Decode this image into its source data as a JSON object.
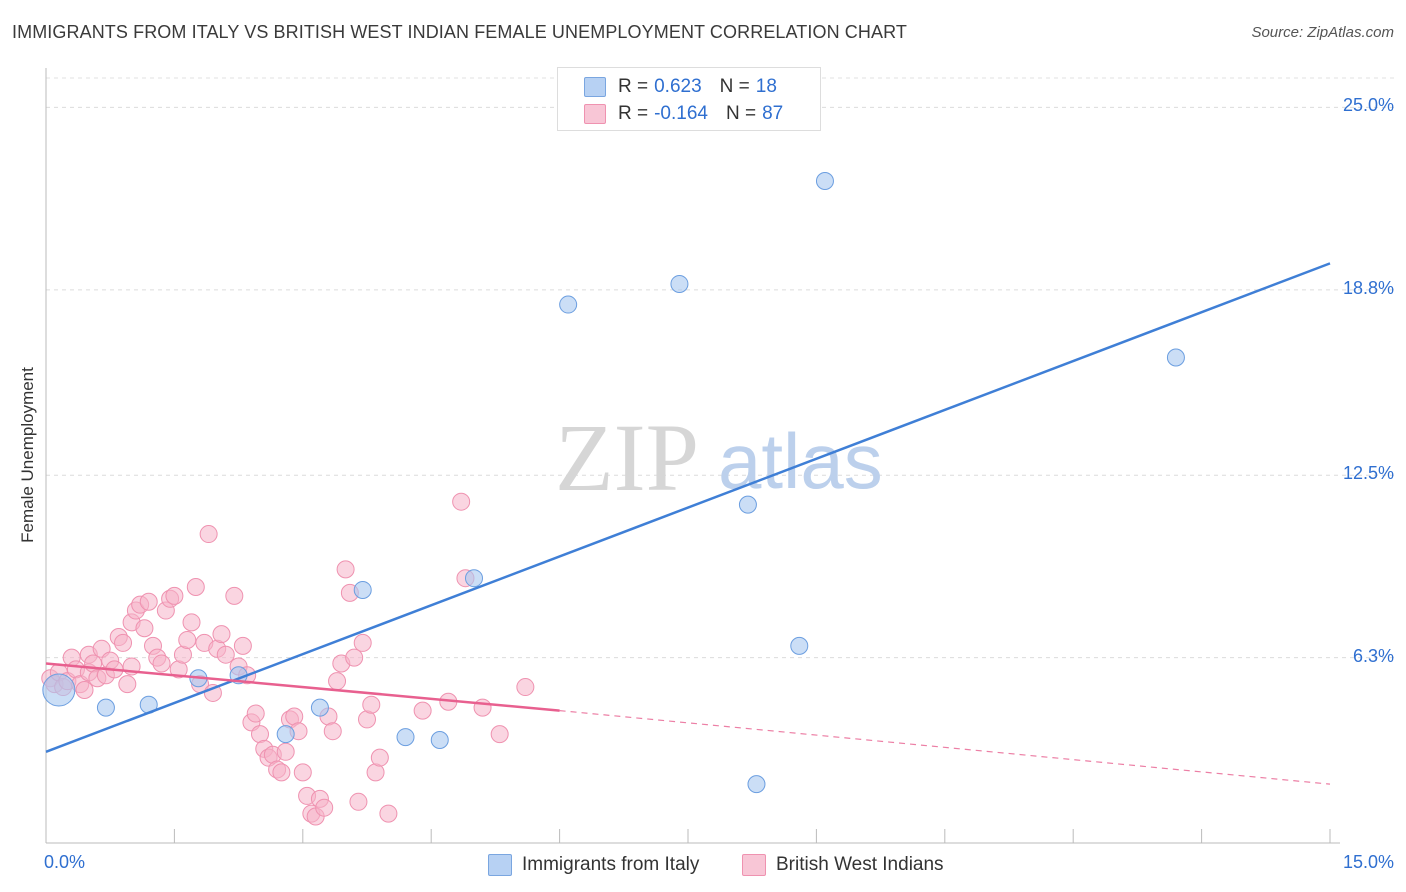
{
  "title": "IMMIGRANTS FROM ITALY VS BRITISH WEST INDIAN FEMALE UNEMPLOYMENT CORRELATION CHART",
  "source": "Source: ZipAtlas.com",
  "watermark": {
    "zip": "ZIP",
    "atlas": "atlas"
  },
  "legend": {
    "rows": [
      {
        "r_label": "R =",
        "r_value": "0.623",
        "n_label": "N =",
        "n_value": "18",
        "color": "#a9c8f0"
      },
      {
        "r_label": "R =",
        "r_value": "-0.164",
        "n_label": "N =",
        "n_value": "87",
        "color": "#f5b3c8"
      }
    ]
  },
  "bottom_legend": {
    "italy": "Immigrants from Italy",
    "bwi": "British West Indians"
  },
  "chart_data": {
    "type": "scatter",
    "title": "IMMIGRANTS FROM ITALY VS BRITISH WEST INDIAN FEMALE UNEMPLOYMENT CORRELATION CHART",
    "xlabel": "",
    "ylabel": "Female Unemployment",
    "xlim": [
      0,
      15
    ],
    "ylim": [
      0,
      26
    ],
    "x_ticks": [
      "0.0%",
      "15.0%"
    ],
    "y_ticks": [
      {
        "value": 6.3,
        "label": "6.3%"
      },
      {
        "value": 12.5,
        "label": "12.5%"
      },
      {
        "value": 18.8,
        "label": "18.8%"
      },
      {
        "value": 25.0,
        "label": "25.0%"
      }
    ],
    "grid": true,
    "series": [
      {
        "name": "Immigrants from Italy",
        "color": "#3f7fd6",
        "fill": "#a9c8f0",
        "points": [
          [
            0.15,
            5.2
          ],
          [
            0.7,
            4.6
          ],
          [
            1.2,
            4.7
          ],
          [
            1.78,
            5.6
          ],
          [
            2.25,
            5.7
          ],
          [
            2.8,
            3.7
          ],
          [
            3.2,
            4.6
          ],
          [
            3.7,
            8.6
          ],
          [
            4.2,
            3.6
          ],
          [
            4.6,
            3.5
          ],
          [
            5.0,
            9.0
          ],
          [
            6.1,
            18.3
          ],
          [
            7.4,
            19.0
          ],
          [
            8.2,
            11.5
          ],
          [
            8.8,
            6.7
          ],
          [
            8.3,
            2.0
          ],
          [
            9.1,
            22.5
          ],
          [
            13.2,
            16.5
          ]
        ],
        "trend": {
          "x0": 0.0,
          "y0": 3.1,
          "x1": 15.0,
          "y1": 19.7
        }
      },
      {
        "name": "British West Indians",
        "color": "#e8608f",
        "fill": "#f5b3c8",
        "points": [
          [
            0.05,
            5.6
          ],
          [
            0.1,
            5.4
          ],
          [
            0.15,
            5.8
          ],
          [
            0.2,
            5.3
          ],
          [
            0.25,
            5.5
          ],
          [
            0.3,
            6.3
          ],
          [
            0.35,
            5.9
          ],
          [
            0.4,
            5.4
          ],
          [
            0.45,
            5.2
          ],
          [
            0.5,
            5.8
          ],
          [
            0.5,
            6.4
          ],
          [
            0.55,
            6.1
          ],
          [
            0.6,
            5.6
          ],
          [
            0.65,
            6.6
          ],
          [
            0.7,
            5.7
          ],
          [
            0.75,
            6.2
          ],
          [
            0.8,
            5.9
          ],
          [
            0.85,
            7.0
          ],
          [
            0.9,
            6.8
          ],
          [
            0.95,
            5.4
          ],
          [
            1.0,
            6.0
          ],
          [
            1.0,
            7.5
          ],
          [
            1.05,
            7.9
          ],
          [
            1.1,
            8.1
          ],
          [
            1.15,
            7.3
          ],
          [
            1.2,
            8.2
          ],
          [
            1.25,
            6.7
          ],
          [
            1.3,
            6.3
          ],
          [
            1.35,
            6.1
          ],
          [
            1.4,
            7.9
          ],
          [
            1.45,
            8.3
          ],
          [
            1.5,
            8.4
          ],
          [
            1.55,
            5.9
          ],
          [
            1.6,
            6.4
          ],
          [
            1.65,
            6.9
          ],
          [
            1.7,
            7.5
          ],
          [
            1.75,
            8.7
          ],
          [
            1.8,
            5.4
          ],
          [
            1.85,
            6.8
          ],
          [
            1.9,
            10.5
          ],
          [
            1.95,
            5.1
          ],
          [
            2.0,
            6.6
          ],
          [
            2.05,
            7.1
          ],
          [
            2.1,
            6.4
          ],
          [
            2.2,
            8.4
          ],
          [
            2.25,
            6.0
          ],
          [
            2.3,
            6.7
          ],
          [
            2.35,
            5.7
          ],
          [
            2.4,
            4.1
          ],
          [
            2.45,
            4.4
          ],
          [
            2.5,
            3.7
          ],
          [
            2.55,
            3.2
          ],
          [
            2.6,
            2.9
          ],
          [
            2.65,
            3.0
          ],
          [
            2.7,
            2.5
          ],
          [
            2.75,
            2.4
          ],
          [
            2.8,
            3.1
          ],
          [
            2.85,
            4.2
          ],
          [
            2.9,
            4.3
          ],
          [
            2.95,
            3.8
          ],
          [
            3.0,
            2.4
          ],
          [
            3.05,
            1.6
          ],
          [
            3.1,
            1.0
          ],
          [
            3.15,
            0.9
          ],
          [
            3.2,
            1.5
          ],
          [
            3.25,
            1.2
          ],
          [
            3.3,
            4.3
          ],
          [
            3.35,
            3.8
          ],
          [
            3.4,
            5.5
          ],
          [
            3.45,
            6.1
          ],
          [
            3.5,
            9.3
          ],
          [
            3.55,
            8.5
          ],
          [
            3.6,
            6.3
          ],
          [
            3.65,
            1.4
          ],
          [
            3.7,
            6.8
          ],
          [
            3.75,
            4.2
          ],
          [
            3.8,
            4.7
          ],
          [
            3.85,
            2.4
          ],
          [
            3.9,
            2.9
          ],
          [
            4.0,
            1.0
          ],
          [
            4.4,
            4.5
          ],
          [
            4.9,
            9.0
          ],
          [
            5.3,
            3.7
          ],
          [
            5.6,
            5.3
          ],
          [
            4.85,
            11.6
          ],
          [
            4.7,
            4.8
          ],
          [
            5.1,
            4.6
          ]
        ],
        "trend": {
          "x0": 0.0,
          "y0": 6.1,
          "x1": 6.0,
          "y1": 4.5
        },
        "trend_dashed_to": {
          "x": 15.0,
          "y": 2.0
        }
      }
    ]
  }
}
